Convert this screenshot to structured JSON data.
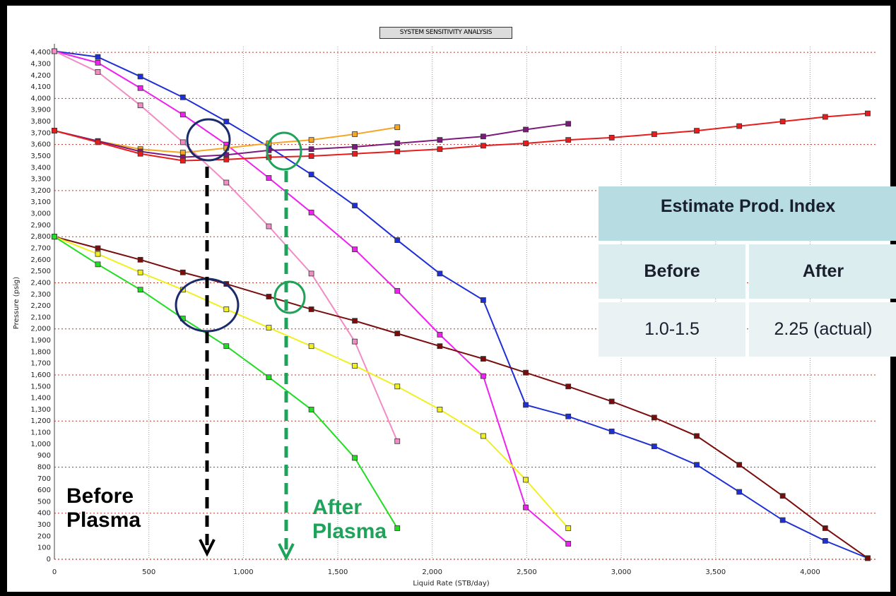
{
  "chart_data": {
    "type": "line",
    "title": "SYSTEM SENSITIVITY ANALYSIS",
    "xlabel": "Liquid Rate  (STB/day)",
    "ylabel": "Pressure  (psig)",
    "xlim": [
      0,
      4350
    ],
    "ylim": [
      0,
      4450
    ],
    "xticks": [
      0,
      500,
      1000,
      1500,
      2000,
      2500,
      3000,
      3500,
      4000
    ],
    "yticks": [
      0,
      100,
      200,
      300,
      400,
      500,
      600,
      700,
      800,
      900,
      1000,
      1100,
      1200,
      1300,
      1400,
      1500,
      1600,
      1700,
      1800,
      1900,
      2000,
      2100,
      2200,
      2300,
      2400,
      2500,
      2600,
      2700,
      2800,
      2900,
      3000,
      3100,
      3200,
      3300,
      3400,
      3500,
      3600,
      3700,
      3800,
      3900,
      4000,
      4100,
      4200,
      4300,
      4400
    ],
    "grid": true,
    "series": [
      {
        "color": "#1f2fd6",
        "points": [
          [
            0,
            4410
          ],
          [
            230,
            4360
          ],
          [
            455,
            4190
          ],
          [
            680,
            4010
          ],
          [
            910,
            3800
          ],
          [
            1135,
            3580
          ],
          [
            1360,
            3340
          ],
          [
            1590,
            3070
          ],
          [
            1815,
            2770
          ],
          [
            2040,
            2480
          ],
          [
            2270,
            2250
          ],
          [
            2495,
            1340
          ],
          [
            2720,
            1240
          ],
          [
            2950,
            1110
          ],
          [
            3175,
            980
          ],
          [
            3400,
            820
          ],
          [
            3625,
            585
          ],
          [
            3855,
            340
          ],
          [
            4080,
            160
          ],
          [
            4305,
            10
          ]
        ]
      },
      {
        "color": "#ee22ee",
        "points": [
          [
            0,
            4410
          ],
          [
            230,
            4310
          ],
          [
            455,
            4090
          ],
          [
            680,
            3860
          ],
          [
            910,
            3600
          ],
          [
            1135,
            3310
          ],
          [
            1360,
            3010
          ],
          [
            1590,
            2690
          ],
          [
            1815,
            2330
          ],
          [
            2040,
            1950
          ],
          [
            2270,
            1590
          ],
          [
            2495,
            450
          ],
          [
            2720,
            135
          ]
        ]
      },
      {
        "color": "#f28cc4",
        "points": [
          [
            0,
            4410
          ],
          [
            230,
            4230
          ],
          [
            455,
            3940
          ],
          [
            680,
            3620
          ],
          [
            910,
            3270
          ],
          [
            1135,
            2890
          ],
          [
            1360,
            2480
          ],
          [
            1590,
            1890
          ],
          [
            1815,
            1025
          ]
        ]
      },
      {
        "color": "#7a0c0c",
        "points": [
          [
            0,
            2800
          ],
          [
            230,
            2700
          ],
          [
            455,
            2600
          ],
          [
            680,
            2490
          ],
          [
            910,
            2390
          ],
          [
            1135,
            2280
          ],
          [
            1360,
            2170
          ],
          [
            1590,
            2070
          ],
          [
            1815,
            1960
          ],
          [
            2040,
            1850
          ],
          [
            2270,
            1740
          ],
          [
            2495,
            1620
          ],
          [
            2720,
            1500
          ],
          [
            2950,
            1370
          ],
          [
            3175,
            1230
          ],
          [
            3400,
            1070
          ],
          [
            3625,
            820
          ],
          [
            3855,
            550
          ],
          [
            4080,
            270
          ],
          [
            4305,
            10
          ]
        ]
      },
      {
        "color": "#f0f020",
        "points": [
          [
            0,
            2800
          ],
          [
            230,
            2650
          ],
          [
            455,
            2490
          ],
          [
            680,
            2340
          ],
          [
            910,
            2170
          ],
          [
            1135,
            2010
          ],
          [
            1360,
            1850
          ],
          [
            1590,
            1680
          ],
          [
            1815,
            1500
          ],
          [
            2040,
            1300
          ],
          [
            2270,
            1070
          ],
          [
            2495,
            690
          ],
          [
            2720,
            270
          ]
        ]
      },
      {
        "color": "#22dd22",
        "points": [
          [
            0,
            2800
          ],
          [
            230,
            2560
          ],
          [
            455,
            2340
          ],
          [
            680,
            2090
          ],
          [
            910,
            1850
          ],
          [
            1135,
            1580
          ],
          [
            1360,
            1300
          ],
          [
            1590,
            880
          ],
          [
            1815,
            270
          ]
        ]
      },
      {
        "color": "#f5a623",
        "points": [
          [
            0,
            3720
          ],
          [
            230,
            3630
          ],
          [
            455,
            3560
          ],
          [
            680,
            3530
          ],
          [
            910,
            3570
          ],
          [
            1135,
            3610
          ],
          [
            1360,
            3640
          ],
          [
            1590,
            3690
          ],
          [
            1815,
            3750
          ]
        ]
      },
      {
        "color": "#7b1a7b",
        "points": [
          [
            0,
            3720
          ],
          [
            230,
            3630
          ],
          [
            455,
            3540
          ],
          [
            680,
            3490
          ],
          [
            910,
            3510
          ],
          [
            1135,
            3550
          ],
          [
            1360,
            3560
          ],
          [
            1590,
            3580
          ],
          [
            1815,
            3610
          ],
          [
            2040,
            3640
          ],
          [
            2270,
            3670
          ],
          [
            2495,
            3730
          ],
          [
            2720,
            3780
          ]
        ]
      },
      {
        "color": "#e81c1c",
        "points": [
          [
            0,
            3720
          ],
          [
            230,
            3620
          ],
          [
            455,
            3520
          ],
          [
            680,
            3460
          ],
          [
            910,
            3470
          ],
          [
            1135,
            3490
          ],
          [
            1360,
            3500
          ],
          [
            1590,
            3520
          ],
          [
            1815,
            3540
          ],
          [
            2040,
            3560
          ],
          [
            2270,
            3590
          ],
          [
            2495,
            3610
          ],
          [
            2720,
            3640
          ],
          [
            2950,
            3660
          ],
          [
            3175,
            3690
          ],
          [
            3400,
            3720
          ],
          [
            3625,
            3760
          ],
          [
            3855,
            3800
          ],
          [
            4080,
            3840
          ],
          [
            4305,
            3870
          ]
        ]
      }
    ],
    "annotations": {
      "before_label": "Before\nPlasma",
      "after_label": "After\nPlasma"
    }
  },
  "estimate_table": {
    "header": "Estimate Prod. Index",
    "col_before": "Before",
    "col_after": "After",
    "val_before": "1.0-1.5",
    "val_after": "2.25 (actual)"
  },
  "colors": {
    "grid_major": "#c0392b",
    "annot_before": "#000000",
    "annot_after": "#1fa35a",
    "table_header_bg": "#b7dde3"
  }
}
